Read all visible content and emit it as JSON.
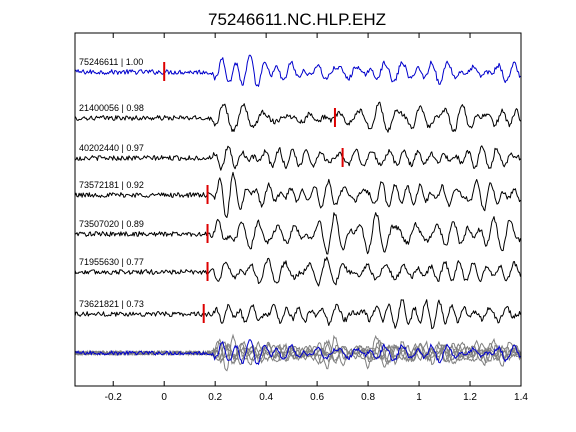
{
  "chart_data": {
    "type": "line",
    "title": "75246611.NC.HLP.EHZ",
    "xlabel": "",
    "ylabel": "",
    "xlim": [
      -0.35,
      1.4
    ],
    "x_ticks": [
      -0.2,
      0,
      0.2,
      0.4,
      0.6,
      0.8,
      1,
      1.2,
      1.4
    ],
    "x_tick_labels": [
      "-0.2",
      "0",
      "0.2",
      "0.4",
      "0.6",
      "0.8",
      "1",
      "1.2",
      "1.4"
    ],
    "grid": false,
    "traces": [
      {
        "label": "75246611 | 1.00",
        "event_id": "75246611",
        "correlation": 1.0,
        "pick_time": 0.0,
        "color": "#0000cc"
      },
      {
        "label": "21400056 | 0.98",
        "event_id": "21400056",
        "correlation": 0.98,
        "pick_time": 0.67,
        "color": "#000000"
      },
      {
        "label": "40202440 | 0.97",
        "event_id": "40202440",
        "correlation": 0.97,
        "pick_time": 0.7,
        "color": "#000000"
      },
      {
        "label": "73572181 | 0.92",
        "event_id": "73572181",
        "correlation": 0.92,
        "pick_time": 0.17,
        "color": "#000000"
      },
      {
        "label": "73507020 | 0.89",
        "event_id": "73507020",
        "correlation": 0.89,
        "pick_time": 0.17,
        "color": "#000000"
      },
      {
        "label": "71955630 | 0.77",
        "event_id": "71955630",
        "correlation": 0.77,
        "pick_time": 0.17,
        "color": "#000000"
      },
      {
        "label": "73621821 | 0.73",
        "event_id": "73621821",
        "correlation": 0.73,
        "pick_time": 0.155,
        "color": "#000000"
      }
    ],
    "stack": {
      "reference_color": "#0000cc",
      "others_color": "#808080"
    },
    "pick_color": "#dd0000"
  }
}
